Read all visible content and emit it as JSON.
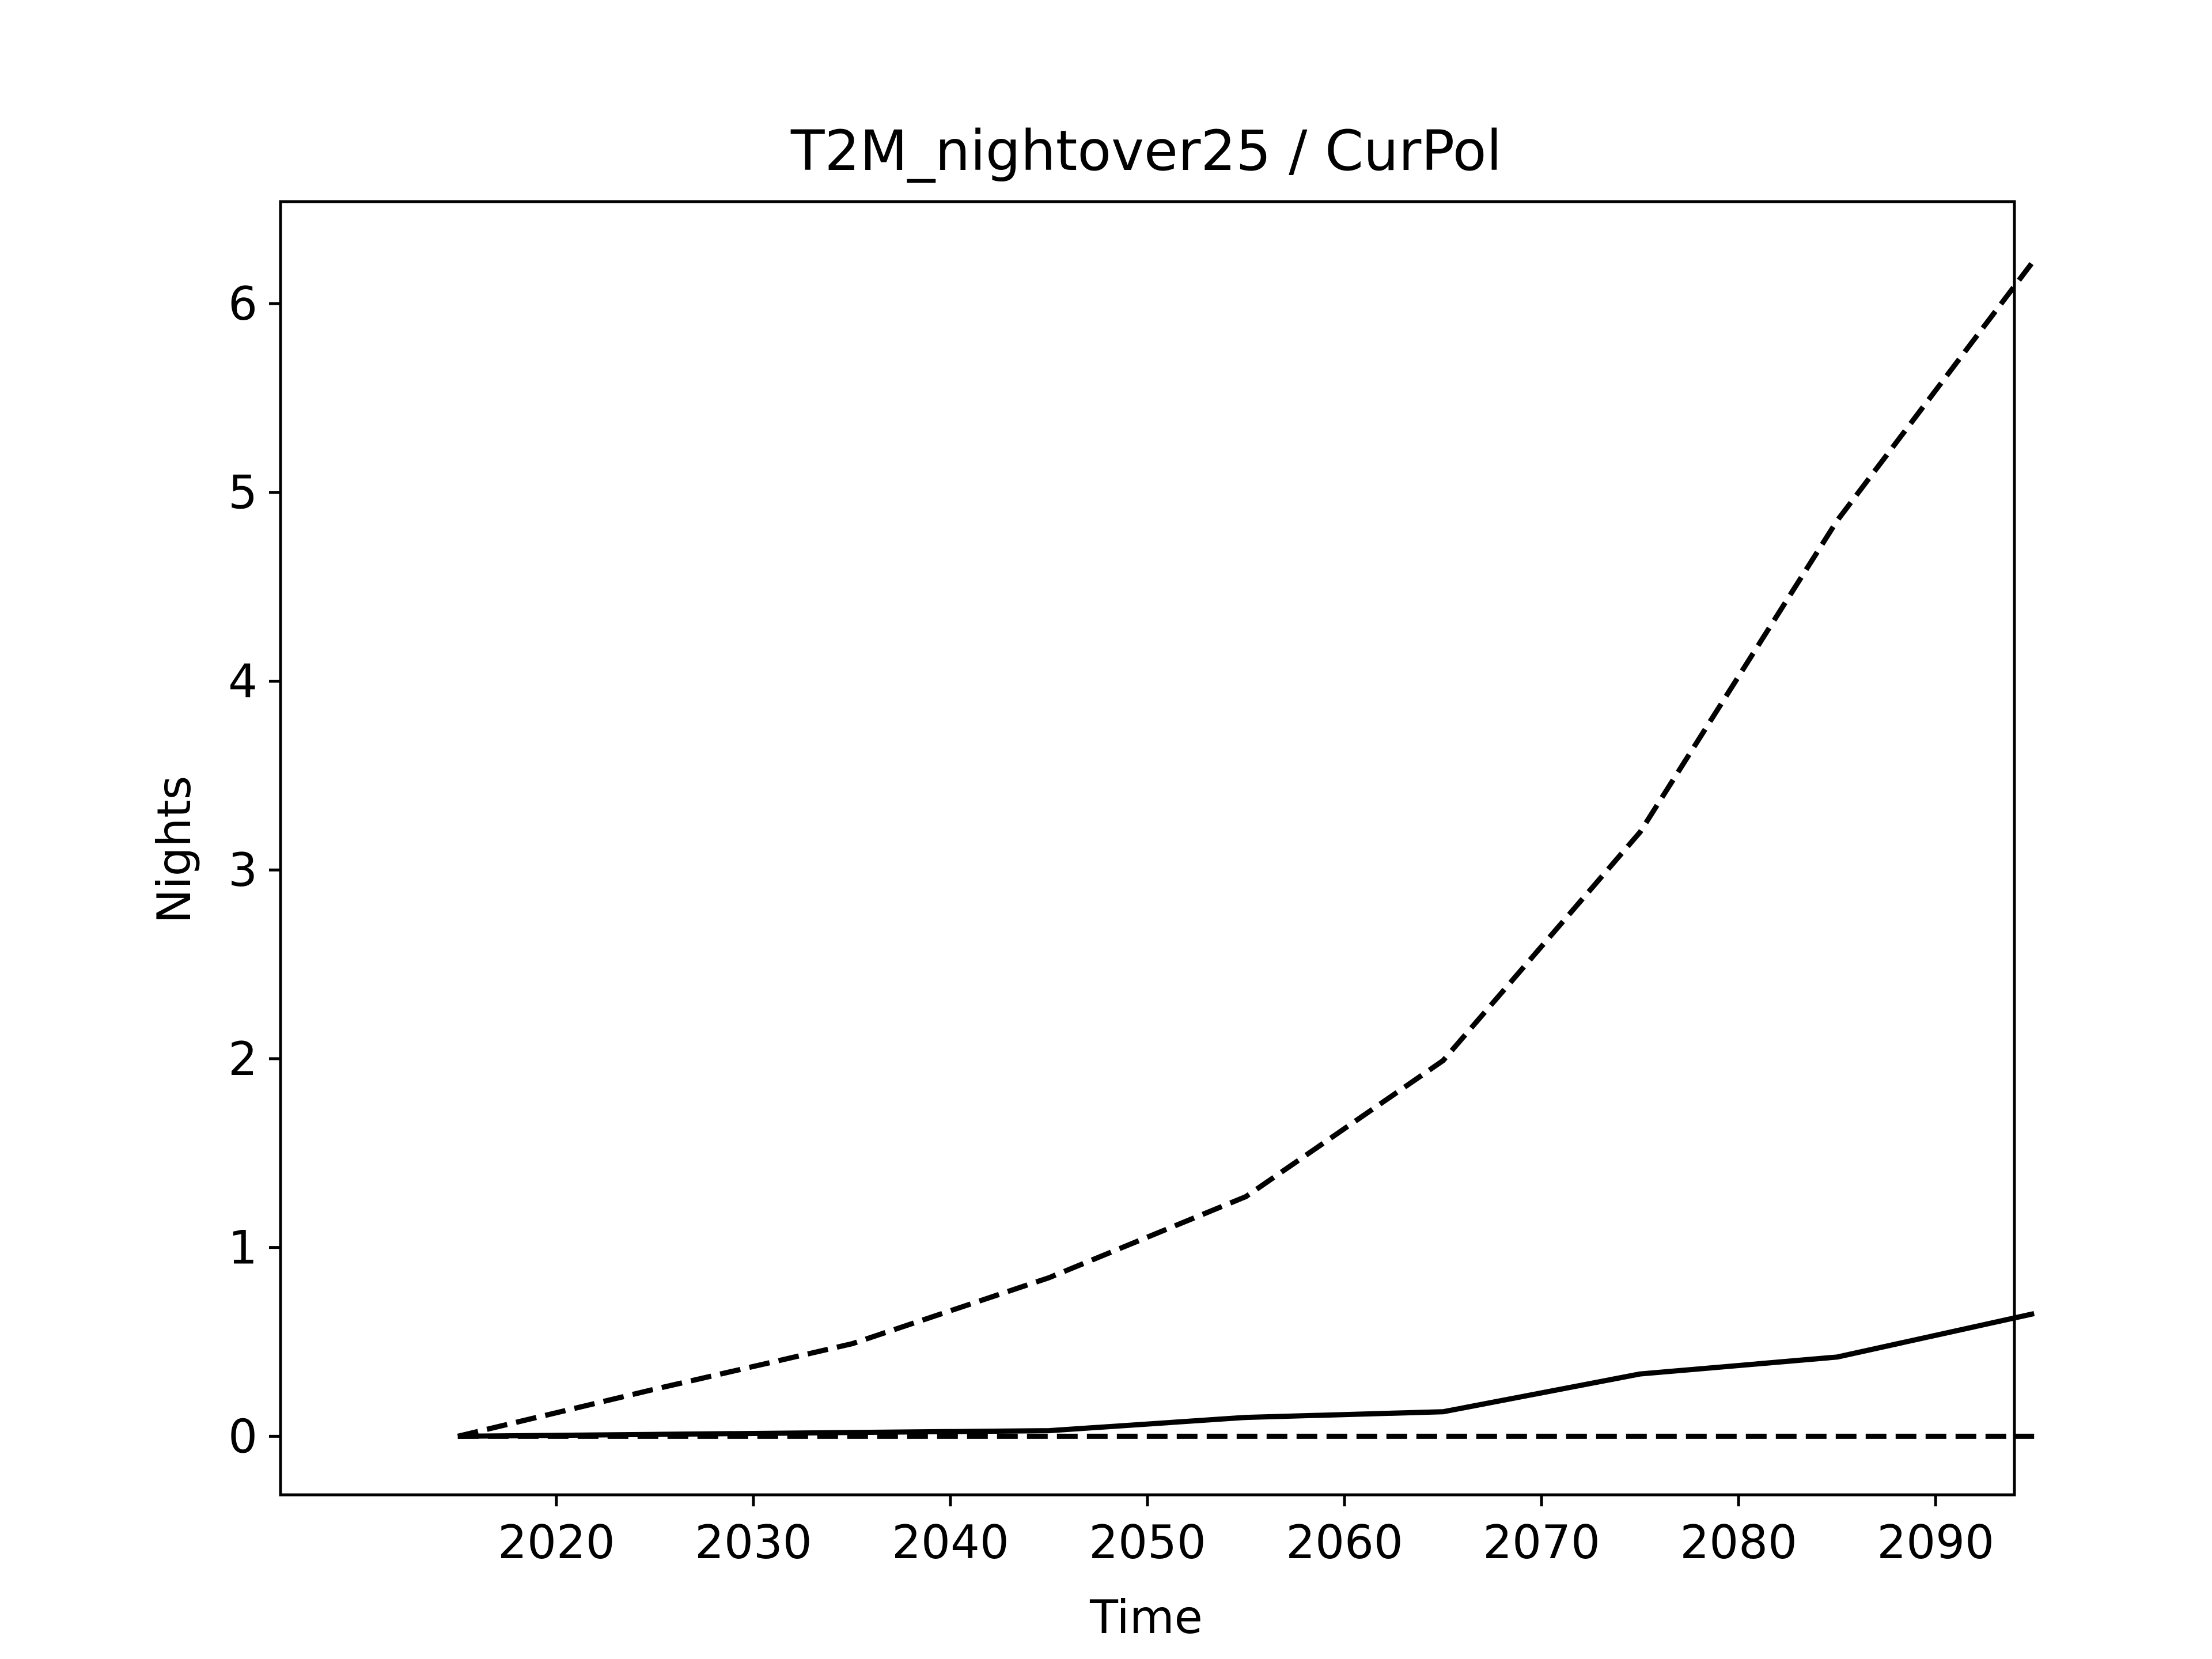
{
  "chart_data": {
    "type": "line",
    "title": "T2M_nightover25 / CurPol",
    "xlabel": "Time",
    "ylabel": "Nights",
    "x": [
      2015,
      2025,
      2035,
      2045,
      2055,
      2065,
      2075,
      2085,
      2095
    ],
    "xlim": [
      2006,
      2094
    ],
    "ylim": [
      -0.31,
      6.54
    ],
    "xticks": [
      2020,
      2030,
      2040,
      2050,
      2060,
      2070,
      2080,
      2090
    ],
    "yticks": [
      0,
      1,
      2,
      3,
      4,
      5,
      6
    ],
    "grid": false,
    "line_color": "#000000",
    "series": [
      {
        "style": "solid",
        "values": [
          0.0,
          0.01,
          0.02,
          0.03,
          0.1,
          0.13,
          0.33,
          0.42,
          0.65
        ]
      },
      {
        "style": "dashed",
        "values": [
          0.0,
          0.25,
          0.49,
          0.84,
          1.27,
          1.99,
          3.2,
          4.85,
          6.23
        ]
      },
      {
        "style": "dashed",
        "values": [
          0.0,
          0.0,
          0.0,
          0.0,
          0.0,
          0.0,
          0.0,
          0.0,
          0.0
        ]
      }
    ]
  }
}
